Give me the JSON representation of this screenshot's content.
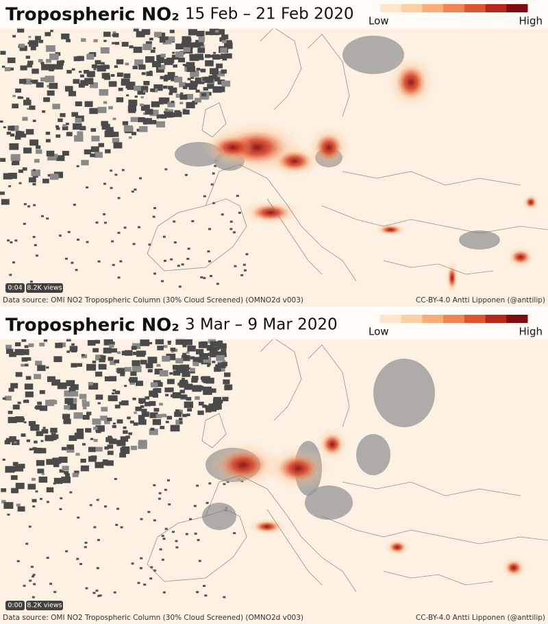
{
  "panels": [
    {
      "title": "Tropospheric NO₂",
      "date": "15 Feb – 21 Feb 2020",
      "legend_low": "Low",
      "legend_high": "High",
      "time": "0:04",
      "views": "8.2K views",
      "source": "Data source: OMI NO2 Tropospheric Column (30% Cloud Screened) (OMNO2d v003)",
      "credit": "CC-BY-4.0 Antti Lipponen (@anttilip)"
    },
    {
      "title": "Tropospheric NO₂",
      "date": "3 Mar – 9 Mar 2020",
      "legend_low": "Low",
      "legend_high": "High",
      "time": "0:00",
      "views": "8.2K views",
      "source": "Data source: OMI NO2 Tropospheric Column (30% Cloud Screened) (OMNO2d v003)",
      "credit": "CC-BY-4.0 Antti Lipponen (@anttilip)"
    }
  ],
  "legend_colors": [
    "#fde6cc",
    "#fbd0a5",
    "#f7ae78",
    "#f0834f",
    "#de5530",
    "#b8261a",
    "#7f0c10"
  ]
}
